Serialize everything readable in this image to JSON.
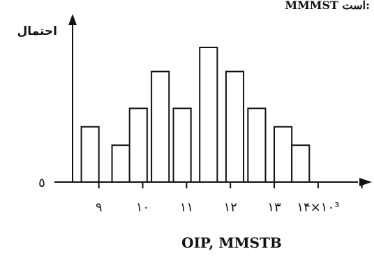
{
  "chart_data": {
    "type": "bar",
    "title": "",
    "cut_title_fragment": "MMMST است:",
    "ylabel": "احتمال",
    "xlabel": "OIP, MMSTB",
    "y_origin_label": "٥",
    "x_tick_labels": [
      "٩",
      "١٠",
      "١١",
      "١٢",
      "١٣",
      "١۴×١٠³"
    ],
    "x_tick_positions": [
      9,
      10,
      11,
      12,
      13,
      14
    ],
    "xlim": [
      8.4,
      15.1
    ],
    "ylim": [
      0,
      1.0
    ],
    "grid": false,
    "legend": "none",
    "bar_width": 0.4,
    "bars": [
      {
        "x": 8.8,
        "value": 0.39
      },
      {
        "x": 9.5,
        "value": 0.26
      },
      {
        "x": 9.9,
        "value": 0.52
      },
      {
        "x": 10.4,
        "value": 0.78
      },
      {
        "x": 10.9,
        "value": 0.52
      },
      {
        "x": 11.5,
        "value": 0.95
      },
      {
        "x": 12.1,
        "value": 0.78
      },
      {
        "x": 12.6,
        "value": 0.52
      },
      {
        "x": 13.2,
        "value": 0.39
      },
      {
        "x": 13.6,
        "value": 0.26
      }
    ]
  },
  "colors": {
    "stroke": "#111111",
    "bar_fill": "#ffffff",
    "background": "#ffffff"
  }
}
